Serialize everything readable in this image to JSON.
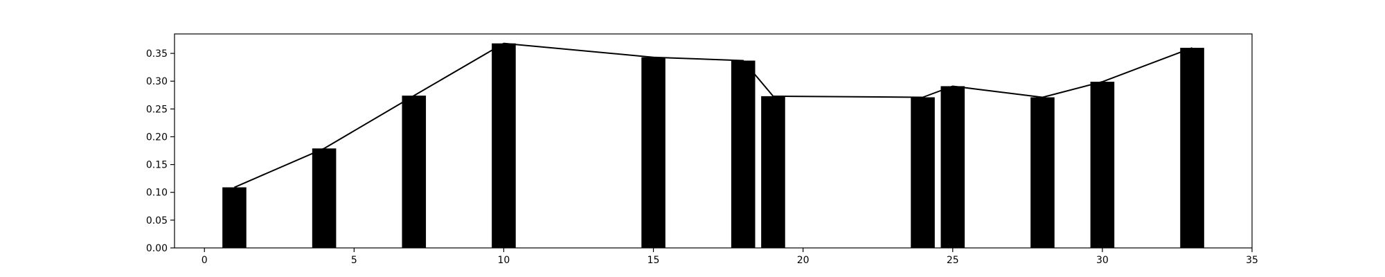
{
  "chart_data": {
    "type": "bar",
    "title": "",
    "xlabel": "",
    "ylabel": "",
    "xlim": [
      -1,
      35
    ],
    "ylim": [
      0.0,
      0.385
    ],
    "grid": false,
    "bar_width": 0.8,
    "colors": {
      "bars": "#000000",
      "line": "#000000",
      "axes": "#000000",
      "background": "#ffffff"
    },
    "x": [
      1,
      4,
      7,
      10,
      15,
      18,
      19,
      24,
      25,
      28,
      30,
      33
    ],
    "values": [
      0.109,
      0.179,
      0.274,
      0.368,
      0.343,
      0.337,
      0.273,
      0.271,
      0.291,
      0.271,
      0.299,
      0.36
    ],
    "line_overlay": {
      "x": [
        1,
        4,
        7,
        10,
        15,
        18,
        19,
        24,
        25,
        28,
        30,
        33
      ],
      "values": [
        0.109,
        0.179,
        0.274,
        0.368,
        0.343,
        0.337,
        0.273,
        0.271,
        0.291,
        0.271,
        0.299,
        0.36
      ]
    },
    "xticks": [
      0,
      5,
      10,
      15,
      20,
      25,
      30,
      35
    ],
    "xtick_labels": [
      "0",
      "5",
      "10",
      "15",
      "20",
      "25",
      "30",
      "35"
    ],
    "yticks": [
      0.0,
      0.05,
      0.1,
      0.15,
      0.2,
      0.25,
      0.3,
      0.35
    ],
    "ytick_labels": [
      "0.00",
      "0.05",
      "0.10",
      "0.15",
      "0.20",
      "0.25",
      "0.30",
      "0.35"
    ]
  }
}
